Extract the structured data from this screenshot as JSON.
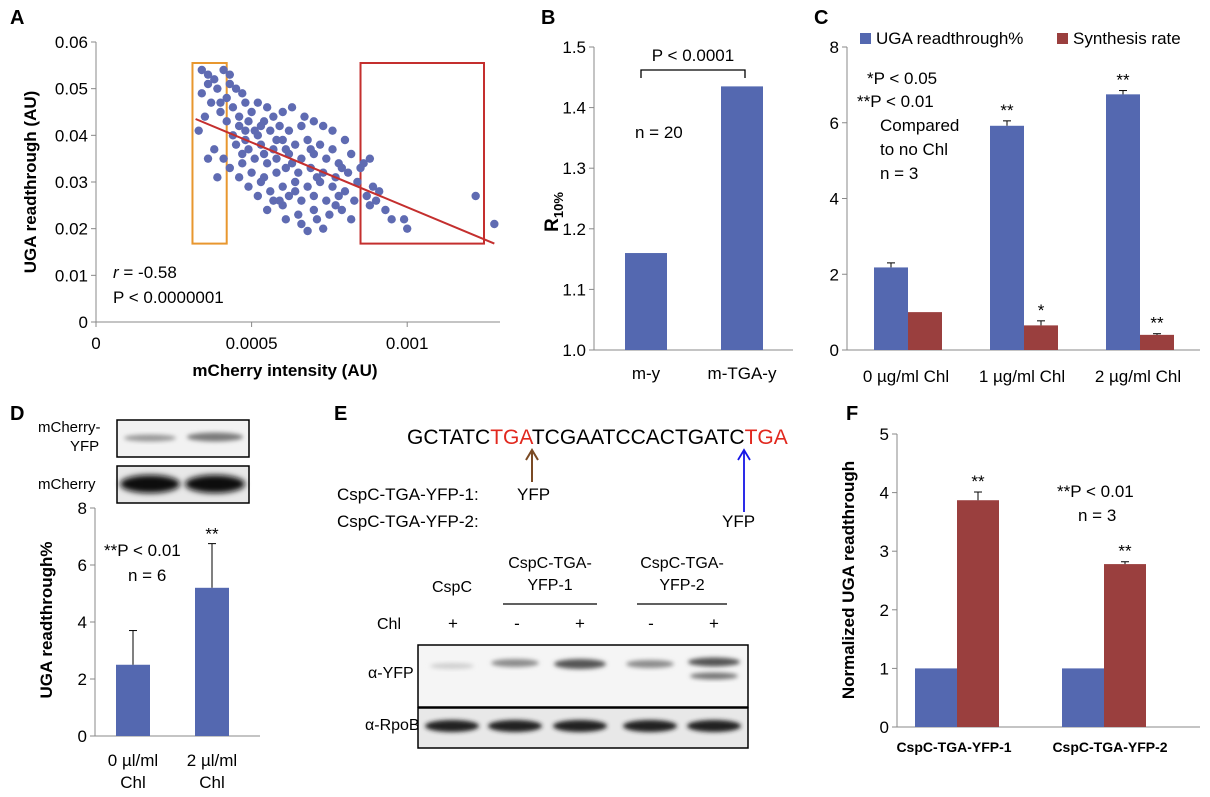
{
  "colors": {
    "blue": "#5468b0",
    "red": "#9a3f3e",
    "scatter": "#5f6bb2",
    "fit": "#c42f2e",
    "orange": "#e8972f",
    "seq_red": "#e1281e",
    "brown": "#7a4a24",
    "arrow_blue": "#1616e6",
    "axis": "#888888"
  },
  "chart_data": [
    {
      "panel": "A",
      "type": "scatter",
      "xlabel": "mCherry intensity (AU)",
      "ylabel": "UGA readthrough (AU)",
      "xlim": [
        0,
        0.0013
      ],
      "ylim": [
        0,
        0.06
      ],
      "xticks": [
        "0",
        "0.0005",
        "0.001"
      ],
      "yticks": [
        "0",
        "0.01",
        "0.02",
        "0.03",
        "0.04",
        "0.05",
        "0.06"
      ],
      "stats": {
        "r_label": "r",
        "r_value": " = -0.58",
        "p": "P < 0.0000001"
      },
      "fit_line": [
        [
          0.00032,
          0.0435
        ],
        [
          0.00128,
          0.0168
        ]
      ],
      "highlight_boxes": [
        {
          "color": "orange",
          "x": [
            0.00031,
            0.00042
          ],
          "y": [
            0.0168,
            0.0555
          ]
        },
        {
          "color": "red",
          "x": [
            0.00085,
            0.00133
          ],
          "y": [
            0.0168,
            0.0555
          ]
        }
      ],
      "points": [
        [
          0.00034,
          0.054
        ],
        [
          0.00036,
          0.053
        ],
        [
          0.00038,
          0.052
        ],
        [
          0.00041,
          0.054
        ],
        [
          0.00043,
          0.053
        ],
        [
          0.00039,
          0.05
        ],
        [
          0.00034,
          0.049
        ],
        [
          0.00037,
          0.047
        ],
        [
          0.00045,
          0.05
        ],
        [
          0.00042,
          0.048
        ],
        [
          0.00047,
          0.049
        ],
        [
          0.00035,
          0.044
        ],
        [
          0.00033,
          0.041
        ],
        [
          0.0004,
          0.045
        ],
        [
          0.00044,
          0.046
        ],
        [
          0.00048,
          0.047
        ],
        [
          0.00046,
          0.044
        ],
        [
          0.0005,
          0.045
        ],
        [
          0.00052,
          0.047
        ],
        [
          0.00055,
          0.046
        ],
        [
          0.00042,
          0.043
        ],
        [
          0.00046,
          0.042
        ],
        [
          0.00049,
          0.043
        ],
        [
          0.00051,
          0.041
        ],
        [
          0.00054,
          0.043
        ],
        [
          0.00057,
          0.044
        ],
        [
          0.0006,
          0.045
        ],
        [
          0.00063,
          0.046
        ],
        [
          0.00067,
          0.044
        ],
        [
          0.00044,
          0.04
        ],
        [
          0.00048,
          0.039
        ],
        [
          0.00052,
          0.04
        ],
        [
          0.00056,
          0.041
        ],
        [
          0.00059,
          0.042
        ],
        [
          0.00062,
          0.041
        ],
        [
          0.00066,
          0.042
        ],
        [
          0.0007,
          0.043
        ],
        [
          0.00073,
          0.042
        ],
        [
          0.00076,
          0.041
        ],
        [
          0.00038,
          0.037
        ],
        [
          0.00041,
          0.035
        ],
        [
          0.00045,
          0.038
        ],
        [
          0.00049,
          0.037
        ],
        [
          0.00053,
          0.038
        ],
        [
          0.00057,
          0.037
        ],
        [
          0.0006,
          0.039
        ],
        [
          0.00064,
          0.038
        ],
        [
          0.00068,
          0.039
        ],
        [
          0.00072,
          0.038
        ],
        [
          0.00076,
          0.037
        ],
        [
          0.0008,
          0.039
        ],
        [
          0.00043,
          0.033
        ],
        [
          0.00047,
          0.034
        ],
        [
          0.00051,
          0.035
        ],
        [
          0.00055,
          0.034
        ],
        [
          0.00058,
          0.035
        ],
        [
          0.00062,
          0.036
        ],
        [
          0.00066,
          0.035
        ],
        [
          0.0007,
          0.036
        ],
        [
          0.00074,
          0.035
        ],
        [
          0.00078,
          0.034
        ],
        [
          0.00082,
          0.036
        ],
        [
          0.00046,
          0.031
        ],
        [
          0.0005,
          0.032
        ],
        [
          0.00054,
          0.031
        ],
        [
          0.00058,
          0.032
        ],
        [
          0.00061,
          0.033
        ],
        [
          0.00065,
          0.032
        ],
        [
          0.00069,
          0.033
        ],
        [
          0.00073,
          0.032
        ],
        [
          0.00077,
          0.031
        ],
        [
          0.00081,
          0.032
        ],
        [
          0.00085,
          0.033
        ],
        [
          0.00049,
          0.029
        ],
        [
          0.00053,
          0.03
        ],
        [
          0.00056,
          0.028
        ],
        [
          0.0006,
          0.029
        ],
        [
          0.00064,
          0.03
        ],
        [
          0.00068,
          0.029
        ],
        [
          0.00072,
          0.03
        ],
        [
          0.00076,
          0.029
        ],
        [
          0.0008,
          0.028
        ],
        [
          0.00084,
          0.03
        ],
        [
          0.00052,
          0.027
        ],
        [
          0.00057,
          0.026
        ],
        [
          0.00062,
          0.027
        ],
        [
          0.00066,
          0.026
        ],
        [
          0.0007,
          0.027
        ],
        [
          0.00074,
          0.026
        ],
        [
          0.00078,
          0.027
        ],
        [
          0.00083,
          0.026
        ],
        [
          0.00087,
          0.027
        ],
        [
          0.0009,
          0.026
        ],
        [
          0.00055,
          0.024
        ],
        [
          0.0006,
          0.025
        ],
        [
          0.00065,
          0.023
        ],
        [
          0.0007,
          0.024
        ],
        [
          0.00075,
          0.023
        ],
        [
          0.00079,
          0.024
        ],
        [
          0.00088,
          0.025
        ],
        [
          0.00093,
          0.024
        ],
        [
          0.00061,
          0.022
        ],
        [
          0.00066,
          0.021
        ],
        [
          0.00071,
          0.022
        ],
        [
          0.00095,
          0.022
        ],
        [
          0.00099,
          0.022
        ],
        [
          0.001,
          0.02
        ],
        [
          0.00068,
          0.0195
        ],
        [
          0.00073,
          0.02
        ],
        [
          0.00122,
          0.027
        ],
        [
          0.00128,
          0.021
        ],
        [
          0.00036,
          0.035
        ],
        [
          0.00039,
          0.031
        ],
        [
          0.00054,
          0.036
        ],
        [
          0.00063,
          0.034
        ],
        [
          0.00071,
          0.031
        ],
        [
          0.00086,
          0.034
        ],
        [
          0.00088,
          0.035
        ],
        [
          0.00058,
          0.039
        ],
        [
          0.00047,
          0.036
        ],
        [
          0.00061,
          0.037
        ],
        [
          0.00069,
          0.037
        ],
        [
          0.00079,
          0.033
        ],
        [
          0.00089,
          0.029
        ],
        [
          0.00091,
          0.028
        ],
        [
          0.00048,
          0.041
        ],
        [
          0.00053,
          0.042
        ],
        [
          0.0004,
          0.047
        ],
        [
          0.00036,
          0.051
        ],
        [
          0.00043,
          0.051
        ],
        [
          0.00077,
          0.025
        ],
        [
          0.00082,
          0.022
        ],
        [
          0.00064,
          0.028
        ],
        [
          0.00059,
          0.026
        ]
      ]
    },
    {
      "panel": "B",
      "type": "bar",
      "categories": [
        "m-y",
        "m-TGA-y"
      ],
      "values": [
        1.16,
        1.435
      ],
      "ylabel_main": "R",
      "ylabel_sub": "10%",
      "ylim": [
        1.0,
        1.5
      ],
      "yticks": [
        "1.0",
        "1.1",
        "1.2",
        "1.3",
        "1.4",
        "1.5"
      ],
      "annotations": {
        "p": "P < 0.0001",
        "n": "n = 20"
      }
    },
    {
      "panel": "C",
      "type": "bar",
      "categories": [
        "0 µg/ml Chl",
        "1 µg/ml Chl",
        "2 µg/ml Chl"
      ],
      "series": [
        {
          "name": "UGA readthrough%",
          "values": [
            2.18,
            5.92,
            6.75
          ],
          "errors": [
            0.12,
            0.13,
            0.1
          ],
          "marks": [
            "",
            "**",
            "**"
          ]
        },
        {
          "name": "Synthesis rate",
          "values": [
            1.0,
            0.65,
            0.4
          ],
          "errors": [
            0,
            0.12,
            0.03
          ],
          "marks": [
            "",
            "*",
            "**"
          ]
        }
      ],
      "ylim": [
        0,
        8
      ],
      "yticks": [
        "0",
        "2",
        "4",
        "6",
        "8"
      ],
      "legend": "top",
      "notes": [
        "*P < 0.05",
        "**P < 0.01",
        "Compared",
        "to no Chl",
        "n = 3"
      ]
    },
    {
      "panel": "D",
      "type": "bar",
      "categories_l1": [
        "0 µl/ml",
        "2 µl/ml"
      ],
      "categories_l2": [
        "Chl",
        "Chl"
      ],
      "values": [
        2.5,
        5.2
      ],
      "errors": [
        1.2,
        1.55
      ],
      "marks": [
        "",
        "**"
      ],
      "ylabel": "UGA readthrough%",
      "ylim": [
        0,
        8
      ],
      "yticks": [
        "0",
        "2",
        "4",
        "6",
        "8"
      ],
      "notes": [
        "**P < 0.01",
        "n = 6"
      ],
      "blot_labels": {
        "mcherry_yfp_1": "mCherry-",
        "mcherry_yfp_2": "YFP",
        "mcherry": "mCherry"
      }
    },
    {
      "panel": "F",
      "type": "bar",
      "categories": [
        "CspC-TGA-YFP-1",
        "CspC-TGA-YFP-2"
      ],
      "series": [
        {
          "values": [
            1.0,
            1.0
          ],
          "marks": [
            "",
            ""
          ]
        },
        {
          "values": [
            3.87,
            2.78
          ],
          "errors": [
            0.14,
            0.04
          ],
          "marks": [
            "**",
            "**"
          ]
        }
      ],
      "ylabel": "Normalized UGA readthrough",
      "ylim": [
        0,
        5
      ],
      "yticks": [
        "0",
        "1",
        "2",
        "3",
        "4",
        "5"
      ],
      "notes": [
        "**P < 0.01",
        "n = 3"
      ]
    }
  ],
  "panel_letters": {
    "a": "A",
    "b": "B",
    "c": "C",
    "d": "D",
    "e": "E",
    "f": "F"
  },
  "panel_e": {
    "seq": {
      "p1": "GCTATC",
      "tga1": "TGA",
      "p2": "TCGAATCCACTGATC",
      "tga2": "TGA"
    },
    "construct1": "CspC-TGA-YFP-1:",
    "construct1_target": "YFP",
    "construct2": "CspC-TGA-YFP-2:",
    "construct2_target": "YFP",
    "lane_header_cspc": "CspC",
    "grp1_l1": "CspC-TGA-",
    "grp1_l2": "YFP-1",
    "grp2_l1": "CspC-TGA-",
    "grp2_l2": "YFP-2",
    "chl_label": "Chl",
    "chl_signs": [
      "+",
      "-",
      "+",
      "-",
      "+"
    ],
    "blot_yfp": "α-YFP",
    "blot_rpob": "α-RpoB"
  }
}
